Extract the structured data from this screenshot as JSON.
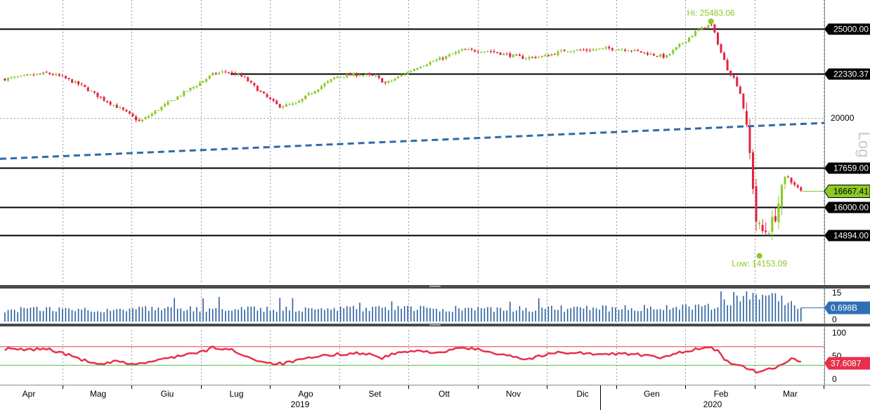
{
  "chart_data": [
    {
      "type": "candlestick",
      "title": "",
      "scale": "log",
      "ylim": [
        13200,
        26600
      ],
      "x_labels": [
        "Apr",
        "Mag",
        "Giu",
        "Lug",
        "Ago",
        "Set",
        "Ott",
        "Nov",
        "Dic",
        "Gen",
        "Feb",
        "Mar"
      ],
      "year_labels": [
        "2019",
        "2020"
      ],
      "price_axis_ticks": [
        "20000"
      ],
      "levels": [
        "25000.00",
        "22330.37",
        "17659.00",
        "16000.00",
        "14894.00"
      ],
      "level_values": [
        25000,
        22330.37,
        17659,
        16000,
        14894
      ],
      "last_price_label": "16667.41",
      "last_price": 16667.41,
      "high_label": "Hi: 25483.06",
      "high": 25483.06,
      "low_label": "Low: 14153.09",
      "low": 14153.09,
      "trendline": {
        "start": 18050,
        "end": 19750
      },
      "log_label": "Log",
      "close_anchors": [
        {
          "m": 0.0,
          "v": 22050
        },
        {
          "m": 0.3,
          "v": 22200
        },
        {
          "m": 0.6,
          "v": 22380
        },
        {
          "m": 0.8,
          "v": 22200
        },
        {
          "m": 1.1,
          "v": 21700
        },
        {
          "m": 1.4,
          "v": 21000
        },
        {
          "m": 1.7,
          "v": 20400
        },
        {
          "m": 1.95,
          "v": 19800
        },
        {
          "m": 2.2,
          "v": 20400
        },
        {
          "m": 2.5,
          "v": 21100
        },
        {
          "m": 2.8,
          "v": 21800
        },
        {
          "m": 3.0,
          "v": 22300
        },
        {
          "m": 3.2,
          "v": 22480
        },
        {
          "m": 3.45,
          "v": 22150
        },
        {
          "m": 3.7,
          "v": 21300
        },
        {
          "m": 3.95,
          "v": 20600
        },
        {
          "m": 4.2,
          "v": 20700
        },
        {
          "m": 4.5,
          "v": 21500
        },
        {
          "m": 4.8,
          "v": 22200
        },
        {
          "m": 5.1,
          "v": 22300
        },
        {
          "m": 5.35,
          "v": 22200
        },
        {
          "m": 5.5,
          "v": 21800
        },
        {
          "m": 5.7,
          "v": 22200
        },
        {
          "m": 6.0,
          "v": 22800
        },
        {
          "m": 6.3,
          "v": 23200
        },
        {
          "m": 6.6,
          "v": 23700
        },
        {
          "m": 7.0,
          "v": 23650
        },
        {
          "m": 7.3,
          "v": 23400
        },
        {
          "m": 7.5,
          "v": 23250
        },
        {
          "m": 7.8,
          "v": 23350
        },
        {
          "m": 8.1,
          "v": 23700
        },
        {
          "m": 8.4,
          "v": 23700
        },
        {
          "m": 8.7,
          "v": 23800
        },
        {
          "m": 9.0,
          "v": 23750
        },
        {
          "m": 9.3,
          "v": 23500
        },
        {
          "m": 9.55,
          "v": 23300
        },
        {
          "m": 9.75,
          "v": 24000
        },
        {
          "m": 10.0,
          "v": 24900
        },
        {
          "m": 10.2,
          "v": 25300
        },
        {
          "m": 10.27,
          "v": 24500
        },
        {
          "m": 10.35,
          "v": 23500
        },
        {
          "m": 10.45,
          "v": 22500
        },
        {
          "m": 10.55,
          "v": 22000
        },
        {
          "m": 10.65,
          "v": 21000
        },
        {
          "m": 10.72,
          "v": 19200
        },
        {
          "m": 10.78,
          "v": 17800
        },
        {
          "m": 10.85,
          "v": 15500
        },
        {
          "m": 10.92,
          "v": 15000
        },
        {
          "m": 11.0,
          "v": 15100
        },
        {
          "m": 11.1,
          "v": 15400
        },
        {
          "m": 11.2,
          "v": 16400
        },
        {
          "m": 11.3,
          "v": 17300
        },
        {
          "m": 11.4,
          "v": 16900
        },
        {
          "m": 11.5,
          "v": 16667
        }
      ]
    },
    {
      "type": "bar",
      "title": "",
      "name_label": "",
      "ylim": [
        0,
        15
      ],
      "ticks": [
        "15",
        "0"
      ],
      "last_value_label": "0.698B",
      "anchors": [
        {
          "m": 0.0,
          "v": 6.0
        },
        {
          "m": 3.0,
          "v": 6.2
        },
        {
          "m": 6.0,
          "v": 6.3
        },
        {
          "m": 9.0,
          "v": 6.5
        },
        {
          "m": 10.2,
          "v": 7.5
        },
        {
          "m": 10.5,
          "v": 10.5
        },
        {
          "m": 10.8,
          "v": 13.5
        },
        {
          "m": 11.1,
          "v": 12.0
        },
        {
          "m": 11.5,
          "v": 7.0
        }
      ]
    },
    {
      "type": "line",
      "title": "",
      "ylim": [
        0,
        100
      ],
      "ticks": [
        "100",
        "50",
        "0"
      ],
      "overbought": 70,
      "oversold": 30,
      "last_value_label": "37.6087",
      "anchors": [
        {
          "m": 0.0,
          "v": 65
        },
        {
          "m": 0.3,
          "v": 63
        },
        {
          "m": 0.6,
          "v": 66
        },
        {
          "m": 0.85,
          "v": 55
        },
        {
          "m": 1.0,
          "v": 48
        },
        {
          "m": 1.35,
          "v": 30
        },
        {
          "m": 1.6,
          "v": 38
        },
        {
          "m": 1.9,
          "v": 32
        },
        {
          "m": 2.2,
          "v": 40
        },
        {
          "m": 2.55,
          "v": 52
        },
        {
          "m": 2.85,
          "v": 58
        },
        {
          "m": 3.0,
          "v": 68
        },
        {
          "m": 3.3,
          "v": 62
        },
        {
          "m": 3.55,
          "v": 45
        },
        {
          "m": 3.8,
          "v": 35
        },
        {
          "m": 4.0,
          "v": 33
        },
        {
          "m": 4.3,
          "v": 42
        },
        {
          "m": 4.6,
          "v": 50
        },
        {
          "m": 4.9,
          "v": 55
        },
        {
          "m": 5.2,
          "v": 56
        },
        {
          "m": 5.45,
          "v": 46
        },
        {
          "m": 5.7,
          "v": 58
        },
        {
          "m": 6.0,
          "v": 60
        },
        {
          "m": 6.35,
          "v": 58
        },
        {
          "m": 6.6,
          "v": 68
        },
        {
          "m": 6.9,
          "v": 62
        },
        {
          "m": 7.1,
          "v": 56
        },
        {
          "m": 7.35,
          "v": 50
        },
        {
          "m": 7.5,
          "v": 42
        },
        {
          "m": 7.75,
          "v": 50
        },
        {
          "m": 8.0,
          "v": 58
        },
        {
          "m": 8.3,
          "v": 57
        },
        {
          "m": 8.6,
          "v": 52
        },
        {
          "m": 8.9,
          "v": 56
        },
        {
          "m": 9.2,
          "v": 52
        },
        {
          "m": 9.5,
          "v": 45
        },
        {
          "m": 9.75,
          "v": 58
        },
        {
          "m": 10.0,
          "v": 65
        },
        {
          "m": 10.2,
          "v": 68
        },
        {
          "m": 10.3,
          "v": 60
        },
        {
          "m": 10.4,
          "v": 40
        },
        {
          "m": 10.55,
          "v": 33
        },
        {
          "m": 10.75,
          "v": 20
        },
        {
          "m": 10.9,
          "v": 15
        },
        {
          "m": 11.05,
          "v": 22
        },
        {
          "m": 11.2,
          "v": 30
        },
        {
          "m": 11.35,
          "v": 43
        },
        {
          "m": 11.5,
          "v": 37.6
        }
      ]
    }
  ],
  "colors": {
    "up": "#8ac926",
    "down": "#e3233f",
    "trendline": "#2e6aa8",
    "volume": "#2a5f9e",
    "rsi": "#e8304a",
    "overbought_line": "#e04040",
    "oversold_line": "#58c04a",
    "hilo": "#8ac926",
    "price_badge": "#8ac926",
    "volume_badge": "#2f6fb5",
    "rsi_badge": "#e8304a",
    "panel_divider": "#4a4a4a"
  }
}
